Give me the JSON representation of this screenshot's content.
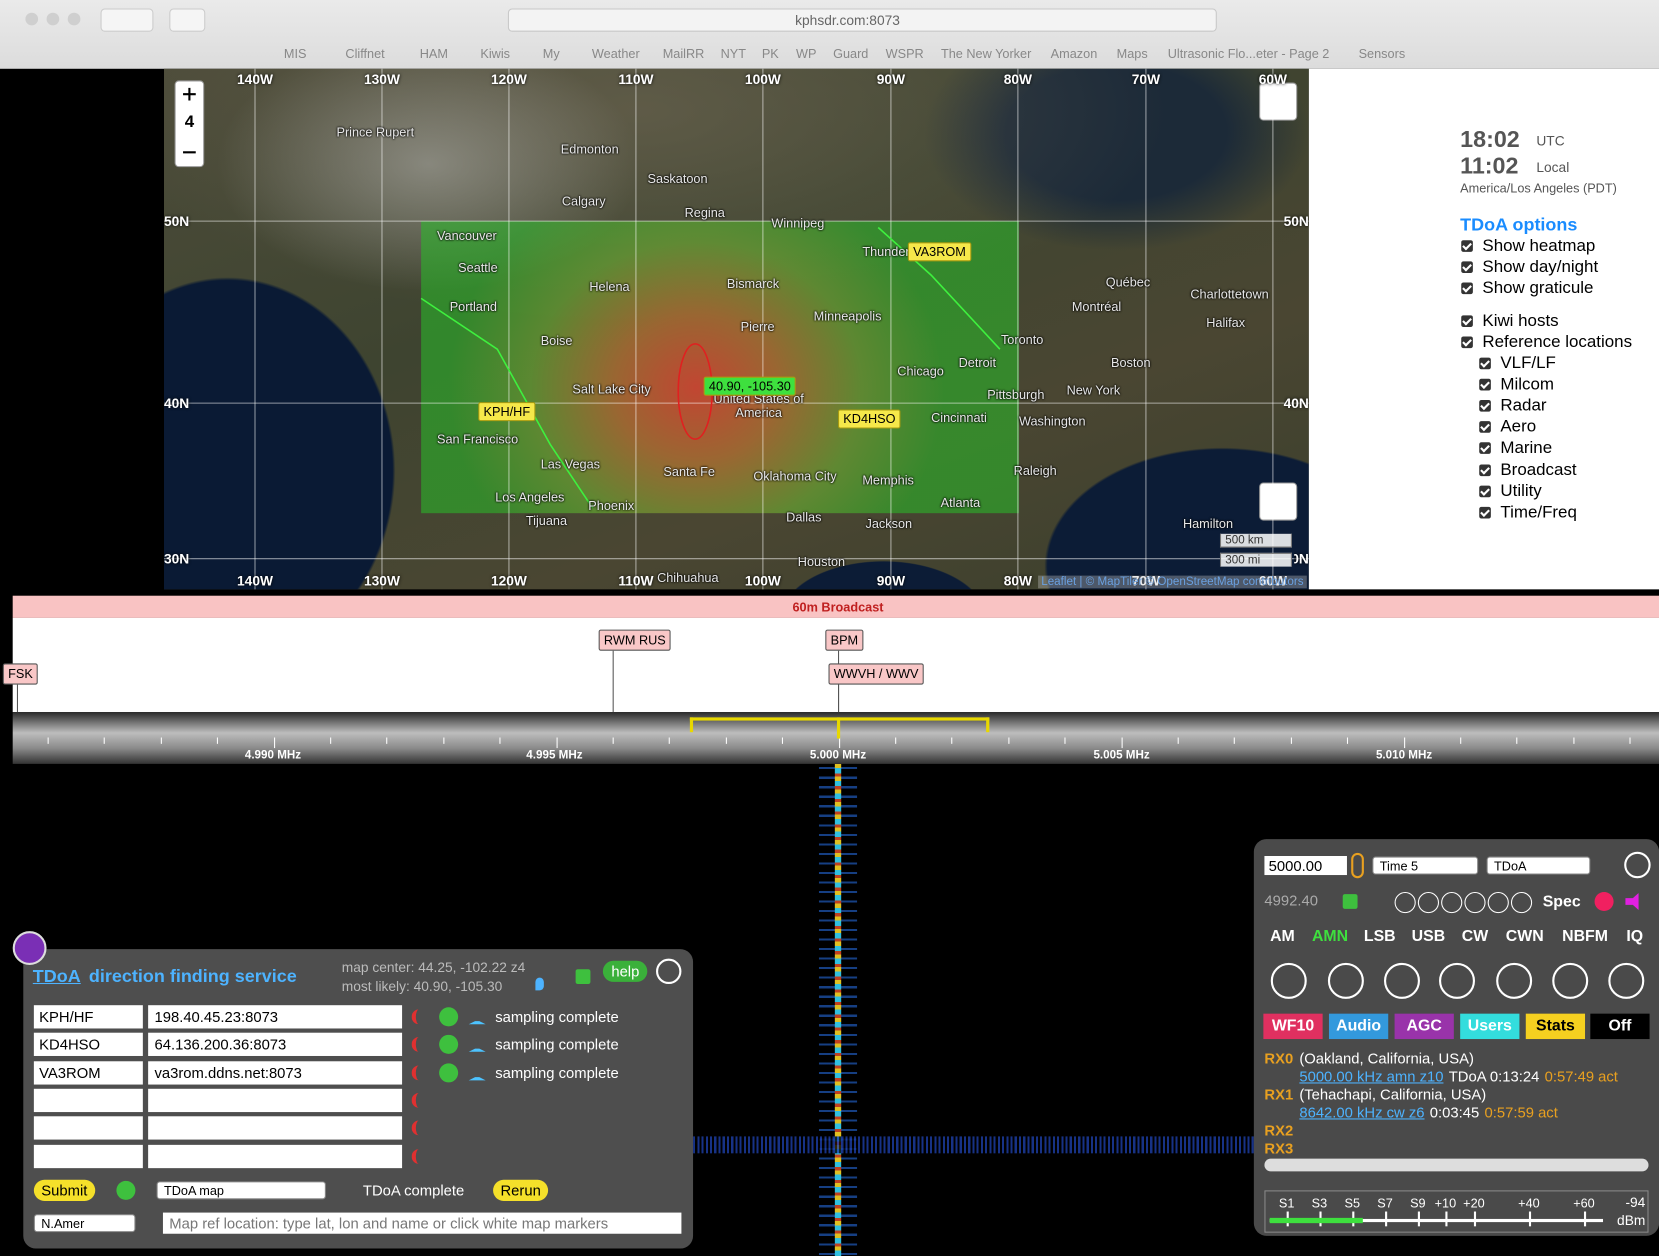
{
  "browser": {
    "url": "kphsdr.com:8073",
    "bookmarks": [
      "MIS",
      "Cliffnet",
      "HAM",
      "Kiwis",
      "My",
      "Weather",
      "MailRR",
      "NYT",
      "PK",
      "WP",
      "Guard",
      "WSPR",
      "The New Yorker",
      "Amazon",
      "Maps",
      "Ultrasonic Flo...eter - Page 2",
      "Sensors"
    ]
  },
  "map": {
    "zoom": "4",
    "lon_labels": [
      "140W",
      "130W",
      "120W",
      "110W",
      "100W",
      "90W",
      "80W",
      "70W",
      "60W"
    ],
    "lat_labels": [
      "50N",
      "40N",
      "30N"
    ],
    "places": [
      "Prince Rupert",
      "Edmonton",
      "Saskatoon",
      "Calgary",
      "Regina",
      "Winnipeg",
      "Vancouver",
      "Seattle",
      "Helena",
      "Bismarck",
      "Portland",
      "Minneapolis",
      "Pierre",
      "Boise",
      "Salt Lake City",
      "Chicago",
      "Detroit",
      "Toronto",
      "Thunder Bay",
      "Québec",
      "Montréal",
      "Charlottetown",
      "Halifax",
      "Boston",
      "New York",
      "Pittsburgh",
      "Washington",
      "Cincinnati",
      "United States of America",
      "San Francisco",
      "Las Vegas",
      "Santa Fe",
      "Oklahoma City",
      "Memphis",
      "Raleigh",
      "Atlanta",
      "Los Angeles",
      "Phoenix",
      "Dallas",
      "Jackson",
      "Tijuana",
      "Chihuahua",
      "Houston",
      "Hamilton"
    ],
    "markers": [
      "VA3ROM",
      "KPH/HF",
      "KD4HSO"
    ],
    "result": "40.90, -105.30",
    "scale": [
      "500 km",
      "300 mi"
    ],
    "attribution": "Leaflet | © MapTiler © OpenStreetMap contributors"
  },
  "side": {
    "utc_time": "18:02",
    "utc_label": "UTC",
    "local_time": "11:02",
    "local_label": "Local",
    "timezone": "America/Los Angeles (PDT)",
    "options_title": "TDoA options",
    "options": [
      "Show heatmap",
      "Show day/night",
      "Show graticule"
    ],
    "host_options": [
      "Kiwi hosts",
      "Reference locations"
    ],
    "reference_types": [
      "VLF/LF",
      "Milcom",
      "Radar",
      "Aero",
      "Marine",
      "Broadcast",
      "Utility",
      "Time/Freq"
    ]
  },
  "band": {
    "name": "60m Broadcast",
    "stations": [
      "FSK",
      "RWM RUS",
      "BPM",
      "WWVH / WWV"
    ],
    "freq_labels": [
      "4.990 MHz",
      "4.995 MHz",
      "5.000 MHz",
      "5.005 MHz",
      "5.010 MHz"
    ]
  },
  "tdoa": {
    "title_link": "TDoA",
    "title": "direction finding service",
    "map_center": "map center: 44.25, -102.22 z4",
    "most_likely": "most likely: 40.90, -105.30",
    "help": "help",
    "hosts": [
      [
        "KPH/HF",
        "198.40.45.23:8073",
        "sampling complete"
      ],
      [
        "KD4HSO",
        "64.136.200.36:8073",
        "sampling complete"
      ],
      [
        "VA3ROM",
        "va3rom.ddns.net:8073",
        "sampling complete"
      ]
    ],
    "submit": "Submit",
    "map_select": "TDoA map",
    "status": "TDoA complete",
    "rerun": "Rerun",
    "region_select": "N.Amer",
    "ref_placeholder": "Map ref location: type lat, lon and name or click white map markers"
  },
  "control": {
    "frequency": "5000.00",
    "time_select": "Time 5",
    "ext_select": "TDoA",
    "lower_freq": "4992.40",
    "spec": "Spec",
    "modes": [
      "AM",
      "AMN",
      "LSB",
      "USB",
      "CW",
      "CWN",
      "NBFM",
      "IQ"
    ],
    "tabs": [
      "WF10",
      "Audio",
      "AGC",
      "Users",
      "Stats",
      "Off"
    ],
    "users": [
      {
        "rx": "RX0",
        "location": "(Oakland, California, USA)",
        "tuning": "5000.00 kHz amn z10",
        "info": "TDoA 0:13:24",
        "time": "0:57:49 act"
      },
      {
        "rx": "RX1",
        "location": "(Tehachapi, California, USA)",
        "tuning": "8642.00 kHz cw z6",
        "info": "0:03:45",
        "time": "0:57:59 act"
      },
      {
        "rx": "RX2"
      },
      {
        "rx": "RX3"
      }
    ],
    "smeter_labels": [
      "S1",
      "S3",
      "S5",
      "S7",
      "S9",
      "+10",
      "+20",
      "+40",
      "+60"
    ],
    "smeter_reading": "-94",
    "smeter_unit": "dBm"
  }
}
